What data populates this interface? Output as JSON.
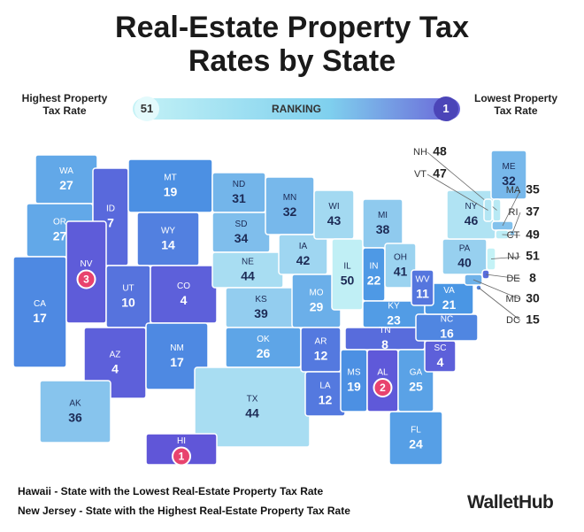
{
  "header": {
    "title": "Real-Estate Property Tax Rates by State"
  },
  "legend": {
    "high_label": "Highest Property Tax Rate",
    "high_rank": 51,
    "center": "RANKING",
    "low_rank": 1,
    "low_label": "Lowest Property Tax Rate"
  },
  "states": [
    {
      "abbr": "WA",
      "rank": 27
    },
    {
      "abbr": "OR",
      "rank": 27
    },
    {
      "abbr": "CA",
      "rank": 17
    },
    {
      "abbr": "ID",
      "rank": 7
    },
    {
      "abbr": "NV",
      "rank": 3
    },
    {
      "abbr": "MT",
      "rank": 19
    },
    {
      "abbr": "WY",
      "rank": 14
    },
    {
      "abbr": "UT",
      "rank": 10
    },
    {
      "abbr": "CO",
      "rank": 4
    },
    {
      "abbr": "AZ",
      "rank": 4
    },
    {
      "abbr": "NM",
      "rank": 17
    },
    {
      "abbr": "ND",
      "rank": 31
    },
    {
      "abbr": "SD",
      "rank": 34
    },
    {
      "abbr": "NE",
      "rank": 44
    },
    {
      "abbr": "KS",
      "rank": 39
    },
    {
      "abbr": "OK",
      "rank": 26
    },
    {
      "abbr": "TX",
      "rank": 44
    },
    {
      "abbr": "MN",
      "rank": 32
    },
    {
      "abbr": "IA",
      "rank": 42
    },
    {
      "abbr": "MO",
      "rank": 29
    },
    {
      "abbr": "AR",
      "rank": 12
    },
    {
      "abbr": "LA",
      "rank": 12
    },
    {
      "abbr": "WI",
      "rank": 43
    },
    {
      "abbr": "IL",
      "rank": 50
    },
    {
      "abbr": "MI",
      "rank": 38
    },
    {
      "abbr": "IN",
      "rank": 22
    },
    {
      "abbr": "OH",
      "rank": 41
    },
    {
      "abbr": "KY",
      "rank": 23
    },
    {
      "abbr": "TN",
      "rank": 8
    },
    {
      "abbr": "MS",
      "rank": 19
    },
    {
      "abbr": "AL",
      "rank": 2
    },
    {
      "abbr": "GA",
      "rank": 25
    },
    {
      "abbr": "FL",
      "rank": 24
    },
    {
      "abbr": "SC",
      "rank": 4
    },
    {
      "abbr": "NC",
      "rank": 16
    },
    {
      "abbr": "VA",
      "rank": 21
    },
    {
      "abbr": "WV",
      "rank": 11
    },
    {
      "abbr": "PA",
      "rank": 40
    },
    {
      "abbr": "NY",
      "rank": 46
    },
    {
      "abbr": "ME",
      "rank": 32
    },
    {
      "abbr": "AK",
      "rank": 36
    },
    {
      "abbr": "HI",
      "rank": 1
    },
    {
      "abbr": "NH",
      "rank": 48
    },
    {
      "abbr": "VT",
      "rank": 47
    },
    {
      "abbr": "MA",
      "rank": 35
    },
    {
      "abbr": "RI",
      "rank": 37
    },
    {
      "abbr": "CT",
      "rank": 49
    },
    {
      "abbr": "NJ",
      "rank": 51
    },
    {
      "abbr": "DE",
      "rank": 8
    },
    {
      "abbr": "MD",
      "rank": 30
    },
    {
      "abbr": "DC",
      "rank": 15
    }
  ],
  "footnotes": [
    "Hawaii - State with the Lowest Real-Estate Property Tax Rate",
    "New Jersey - State with the Highest Real-Estate Property Tax Rate"
  ],
  "brand": "WalletHub"
}
